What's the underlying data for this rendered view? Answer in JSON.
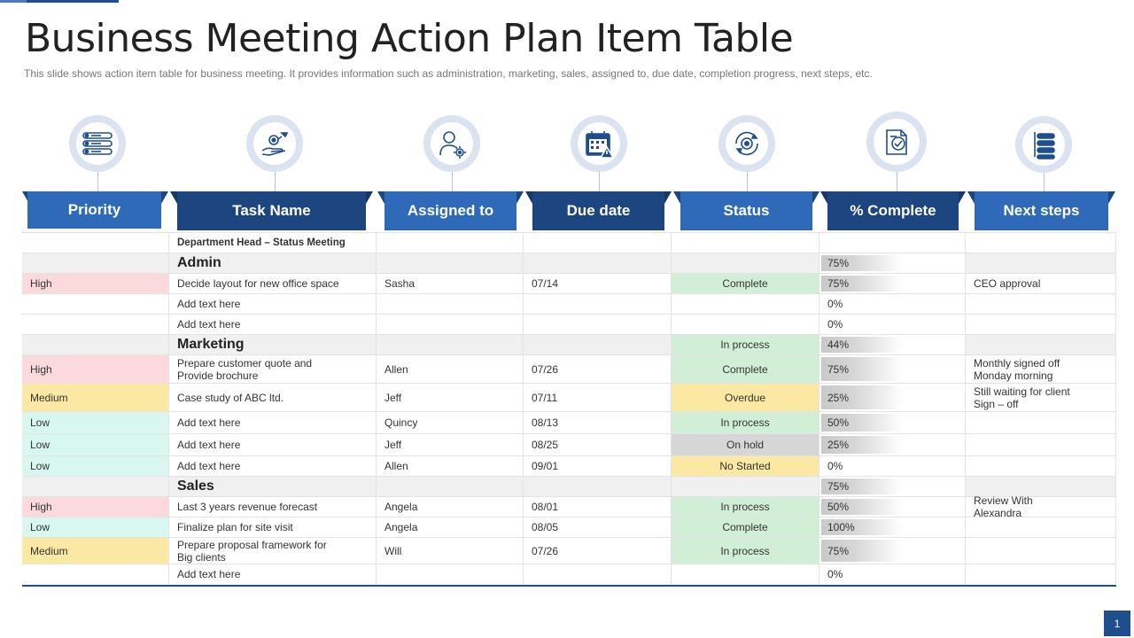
{
  "title": "Business Meeting Action Plan Item Table",
  "subtitle": "This slide shows action item table for business meeting. It provides information such as administration, marketing, sales, assigned to, due date, completion progress, next steps, etc.",
  "colors": {
    "header_light": "#2e6ab8",
    "header_dark": "#1d4580",
    "priority_high": "#fcd9dd",
    "priority_medium": "#fbe9a3",
    "priority_low": "#d8f8ef",
    "status_green": "#d1efd6",
    "status_yellow": "#fbe9a3",
    "status_gray": "#d6d6d6",
    "group_row": "#f0f0f0"
  },
  "icons": [
    "priority-list-icon",
    "task-hand-icon",
    "person-gear-icon",
    "calendar-warning-icon",
    "status-gear-icon",
    "clipboard-check-icon",
    "next-steps-list-icon"
  ],
  "headers": {
    "priority": "Priority",
    "task": "Task Name",
    "assigned": "Assigned to",
    "due": "Due date",
    "status": "Status",
    "complete": "% Complete",
    "next": "Next steps"
  },
  "meeting_label": "Department Head – Status Meeting",
  "rows": [
    {
      "type": "group",
      "title": "Admin",
      "status": "",
      "pct": "75%"
    },
    {
      "type": "item",
      "priority": "High",
      "task": "Decide layout for new office space",
      "assigned": "Sasha",
      "due": "07/14",
      "status": "Complete",
      "pct": "75%",
      "next": "CEO approval"
    },
    {
      "type": "item",
      "priority": "",
      "task": "Add text here",
      "assigned": "",
      "due": "",
      "status": "",
      "pct": "0%",
      "next": ""
    },
    {
      "type": "item",
      "priority": "",
      "task": "Add text here",
      "assigned": "",
      "due": "",
      "status": "",
      "pct": "0%",
      "next": ""
    },
    {
      "type": "group",
      "title": "Marketing",
      "status": "In process",
      "pct": "44%"
    },
    {
      "type": "item",
      "priority": "High",
      "task": "Prepare customer quote and Provide brochure",
      "assigned": "Allen",
      "due": "07/26",
      "status": "Complete",
      "pct": "75%",
      "next": "Monthly signed off Monday morning"
    },
    {
      "type": "item",
      "priority": "Medium",
      "task": "Case study of ABC ltd.",
      "assigned": "Jeff",
      "due": "07/11",
      "status": "Overdue",
      "pct": "25%",
      "next": "Still waiting for client Sign – off"
    },
    {
      "type": "item",
      "priority": "Low",
      "task": "Add text here",
      "assigned": "Quincy",
      "due": "08/13",
      "status": "In process",
      "pct": "50%",
      "next": ""
    },
    {
      "type": "item",
      "priority": "Low",
      "task": "Add text here",
      "assigned": "Jeff",
      "due": "08/25",
      "status": "On hold",
      "pct": "25%",
      "next": ""
    },
    {
      "type": "item",
      "priority": "Low",
      "task": "Add text here",
      "assigned": "Allen",
      "due": "09/01",
      "status": "No Started",
      "pct": "0%",
      "next": ""
    },
    {
      "type": "group",
      "title": "Sales",
      "status": "",
      "pct": "75%"
    },
    {
      "type": "item",
      "priority": "High",
      "task": "Last 3 years revenue forecast",
      "assigned": "Angela",
      "due": "08/01",
      "status": "In process",
      "pct": "50%",
      "next": "Review With Alexandra"
    },
    {
      "type": "item",
      "priority": "Low",
      "task": "Finalize plan for site visit",
      "assigned": "Angela",
      "due": "08/05",
      "status": "Complete",
      "pct": "100%",
      "next": ""
    },
    {
      "type": "item",
      "priority": "Medium",
      "task": "Prepare proposal framework for Big clients",
      "assigned": "Will",
      "due": "07/26",
      "status": "In process",
      "pct": "75%",
      "next": ""
    },
    {
      "type": "item",
      "priority": "",
      "task": "Add text here",
      "assigned": "",
      "due": "",
      "status": "",
      "pct": "0%",
      "next": ""
    }
  ],
  "page_number": "1"
}
